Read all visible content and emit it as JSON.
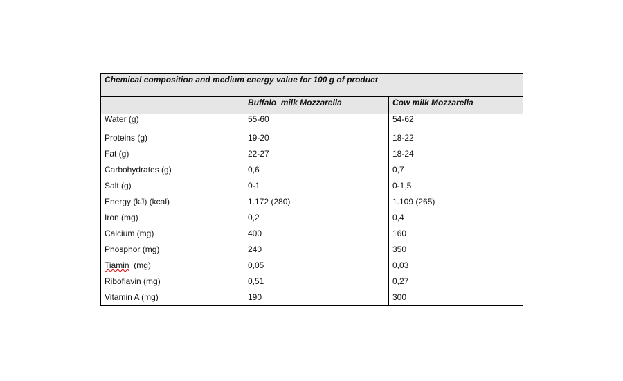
{
  "table": {
    "title": "Chemical composition and medium energy value for 100 g of product",
    "columns": [
      "Buffalo  milk Mozzarella",
      "Cow milk Mozzarella"
    ],
    "rows": [
      [
        "Water (g)",
        "55-60",
        "54-62"
      ],
      [
        "Proteins (g)",
        "19-20",
        "18-22"
      ],
      [
        "Fat (g)",
        "22-27",
        "18-24"
      ],
      [
        "Carbohydrates (g)",
        "0,6",
        "0,7"
      ],
      [
        "Salt (g)",
        "0-1",
        "0-1,5"
      ],
      [
        "Energy (kJ) (kcal)",
        "1.172 (280)",
        "1.109 (265)"
      ],
      [
        "Iron (mg)",
        "0,2",
        "0,4"
      ],
      [
        "Calcium (mg)",
        "400",
        "160"
      ],
      [
        "Phosphor (mg)",
        "240",
        "350"
      ],
      [
        "Tiamin  (mg)",
        "0,05",
        "0,03"
      ],
      [
        "Riboflavin (mg)",
        "0,51",
        "0,27"
      ],
      [
        "Vitamin A (mg)",
        "190",
        "300"
      ]
    ]
  }
}
